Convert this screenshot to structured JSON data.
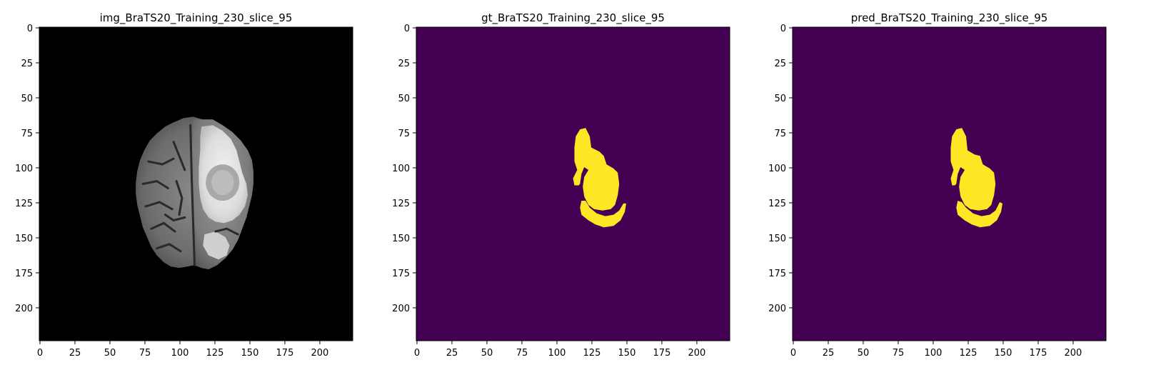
{
  "chart_data": [
    {
      "type": "heatmap",
      "title": "img_BraTS20_Training_230_slice_95",
      "xlim": [
        0,
        224
      ],
      "ylim": [
        224,
        0
      ],
      "xticks": [
        0,
        25,
        50,
        75,
        100,
        125,
        150,
        175,
        200
      ],
      "yticks": [
        0,
        25,
        50,
        75,
        100,
        125,
        150,
        175,
        200
      ],
      "colormap": "gray",
      "background": "#000000",
      "content": "brain-mri-slice"
    },
    {
      "type": "heatmap",
      "title": "gt_BraTS20_Training_230_slice_95",
      "xlim": [
        0,
        224
      ],
      "ylim": [
        224,
        0
      ],
      "xticks": [
        0,
        25,
        50,
        75,
        100,
        125,
        150,
        175,
        200
      ],
      "yticks": [
        0,
        25,
        50,
        75,
        100,
        125,
        150,
        175,
        200
      ],
      "colormap": "viridis",
      "background": "#440154",
      "mask_color": "#fde725",
      "content": "segmentation-mask"
    },
    {
      "type": "heatmap",
      "title": "pred_BraTS20_Training_230_slice_95",
      "xlim": [
        0,
        224
      ],
      "ylim": [
        224,
        0
      ],
      "xticks": [
        0,
        25,
        50,
        75,
        100,
        125,
        150,
        175,
        200
      ],
      "yticks": [
        0,
        25,
        50,
        75,
        100,
        125,
        150,
        175,
        200
      ],
      "colormap": "viridis",
      "background": "#440154",
      "mask_color": "#fde725",
      "content": "segmentation-mask"
    }
  ]
}
